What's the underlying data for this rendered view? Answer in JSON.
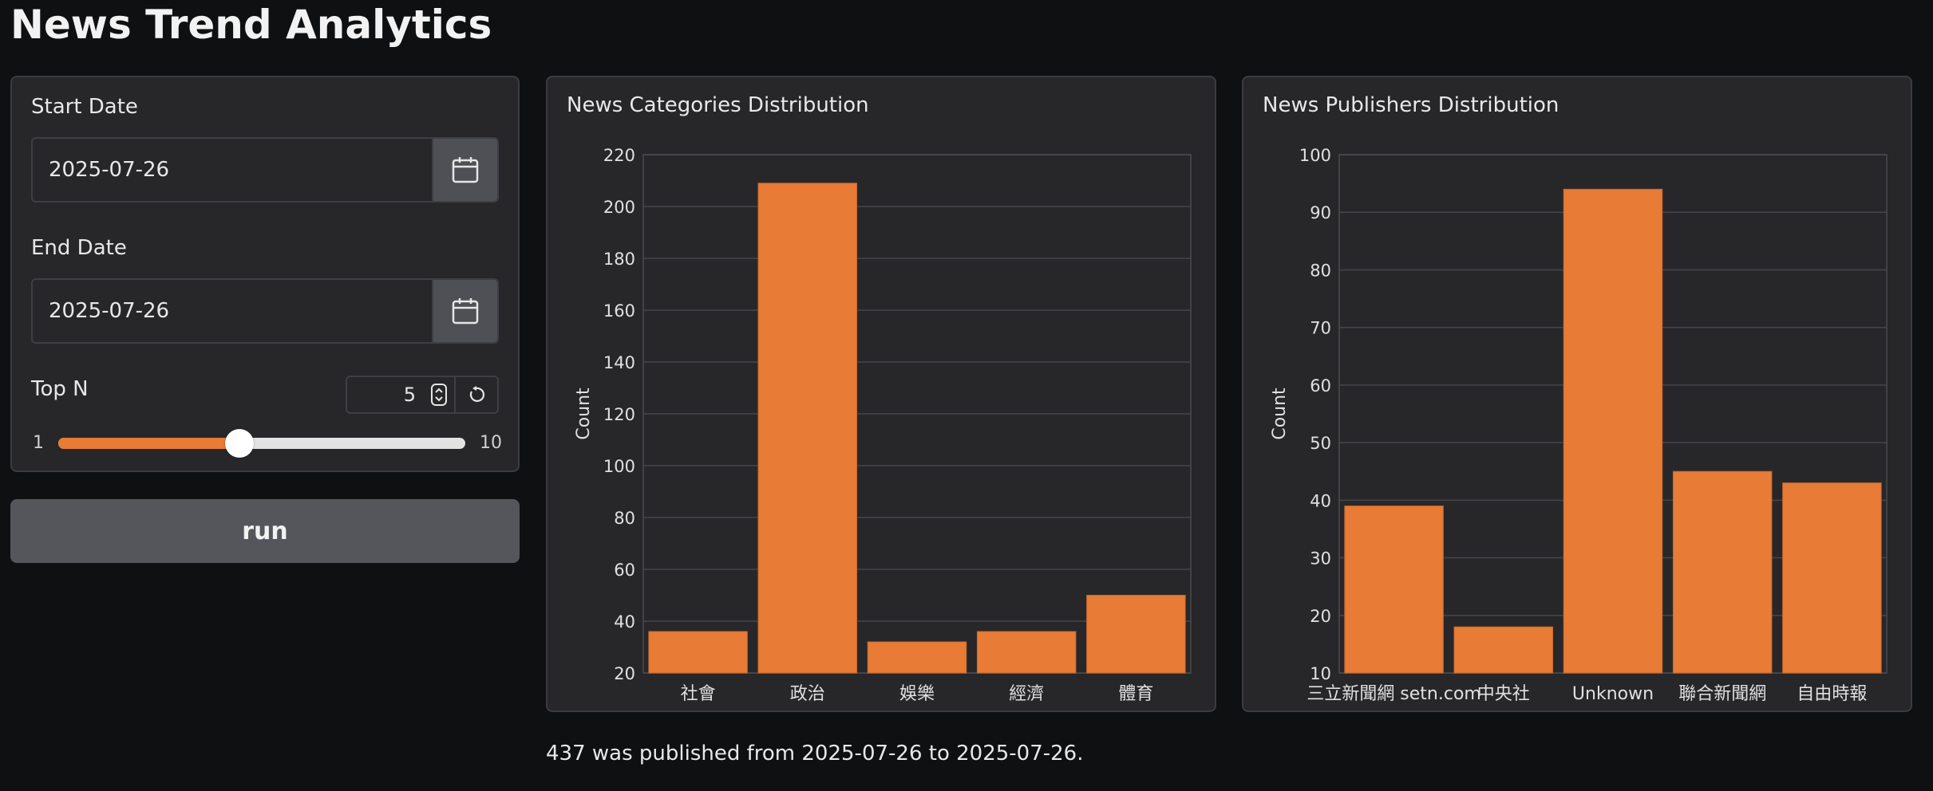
{
  "app": {
    "title": "News Trend Analytics"
  },
  "controls": {
    "start_date_label": "Start Date",
    "start_date_value": "2025-07-26",
    "end_date_label": "End Date",
    "end_date_value": "2025-07-26",
    "top_n_label": "Top N",
    "top_n_value": "5",
    "slider_min": "1",
    "slider_max": "10",
    "slider_value": 5,
    "accent_color": "#e87b35",
    "icons": {
      "calendar": "calendar-icon",
      "stepper": "stepper-icon",
      "reset": "reset-icon"
    }
  },
  "run_button": {
    "label": "run"
  },
  "summary": {
    "text": "437 was published from 2025-07-26 to 2025-07-26."
  },
  "chart_data": [
    {
      "type": "bar",
      "title": "News Categories Distribution",
      "xlabel": "",
      "ylabel": "Count",
      "categories": [
        "社會",
        "政治",
        "娛樂",
        "經濟",
        "體育"
      ],
      "values": [
        36,
        209,
        32,
        36,
        50
      ],
      "ylim": [
        20,
        220
      ],
      "yticks": [
        20,
        40,
        60,
        80,
        100,
        120,
        140,
        160,
        180,
        200,
        220
      ],
      "grid": true,
      "bar_color": "#e87b35"
    },
    {
      "type": "bar",
      "title": "News Publishers Distribution",
      "xlabel": "",
      "ylabel": "Count",
      "categories": [
        "三立新聞網 setn.com",
        "中央社",
        "Unknown",
        "聯合新聞網",
        "自由時報"
      ],
      "values": [
        39,
        18,
        94,
        45,
        43
      ],
      "ylim": [
        10,
        100
      ],
      "yticks": [
        10,
        20,
        30,
        40,
        50,
        60,
        70,
        80,
        90,
        100
      ],
      "grid": true,
      "bar_color": "#e87b35"
    }
  ]
}
